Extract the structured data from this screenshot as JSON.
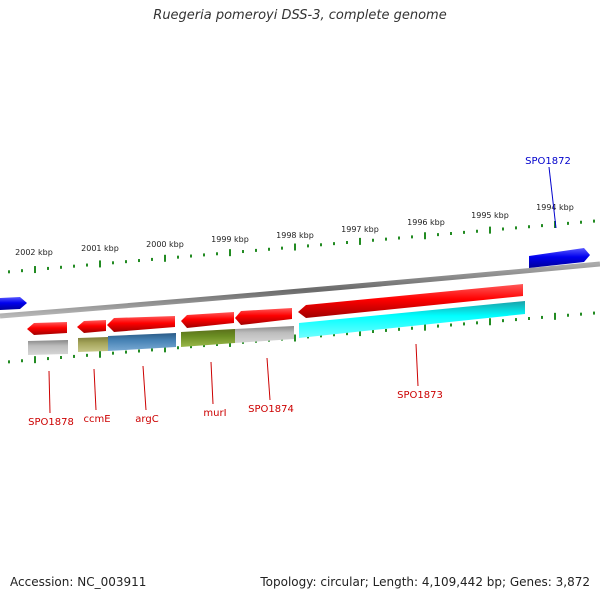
{
  "title": "Ruegeria pomeroyi DSS-3, complete genome",
  "scale_labels": [
    "2002 kbp",
    "2001 kbp",
    "2000 kbp",
    "1999 kbp",
    "1998 kbp",
    "1997 kbp",
    "1996 kbp",
    "1995 kbp",
    "1994 kbp"
  ],
  "genes": [
    {
      "name": "SPO1872",
      "strand": "forward",
      "color": "#0000cc"
    },
    {
      "name": "SPO1873",
      "strand": "reverse",
      "color": "#cc0000",
      "domain_color": "#00e5ee"
    },
    {
      "name": "SPO1874",
      "strand": "reverse",
      "color": "#cc0000",
      "domain_color": "#b4b4b4"
    },
    {
      "name": "murI",
      "strand": "reverse",
      "color": "#cc0000",
      "domain_color": "#6b8e23"
    },
    {
      "name": "argC",
      "strand": "reverse",
      "color": "#cc0000",
      "domain_color": "#4682b4"
    },
    {
      "name": "ccmE",
      "strand": "reverse",
      "color": "#cc0000",
      "domain_color": "#a4a45a"
    },
    {
      "name": "SPO1878",
      "strand": "reverse",
      "color": "#cc0000",
      "domain_color": "#b4b4b4"
    }
  ],
  "footer": {
    "accession": "Accession: NC_003911",
    "summary": "Topology: circular; Length: 4,109,442 bp; Genes: 3,872"
  },
  "colors": {
    "forward_gene": "#0000cc",
    "reverse_gene": "#cc0000",
    "backbone": "#888888",
    "ticks": "#228b22"
  }
}
